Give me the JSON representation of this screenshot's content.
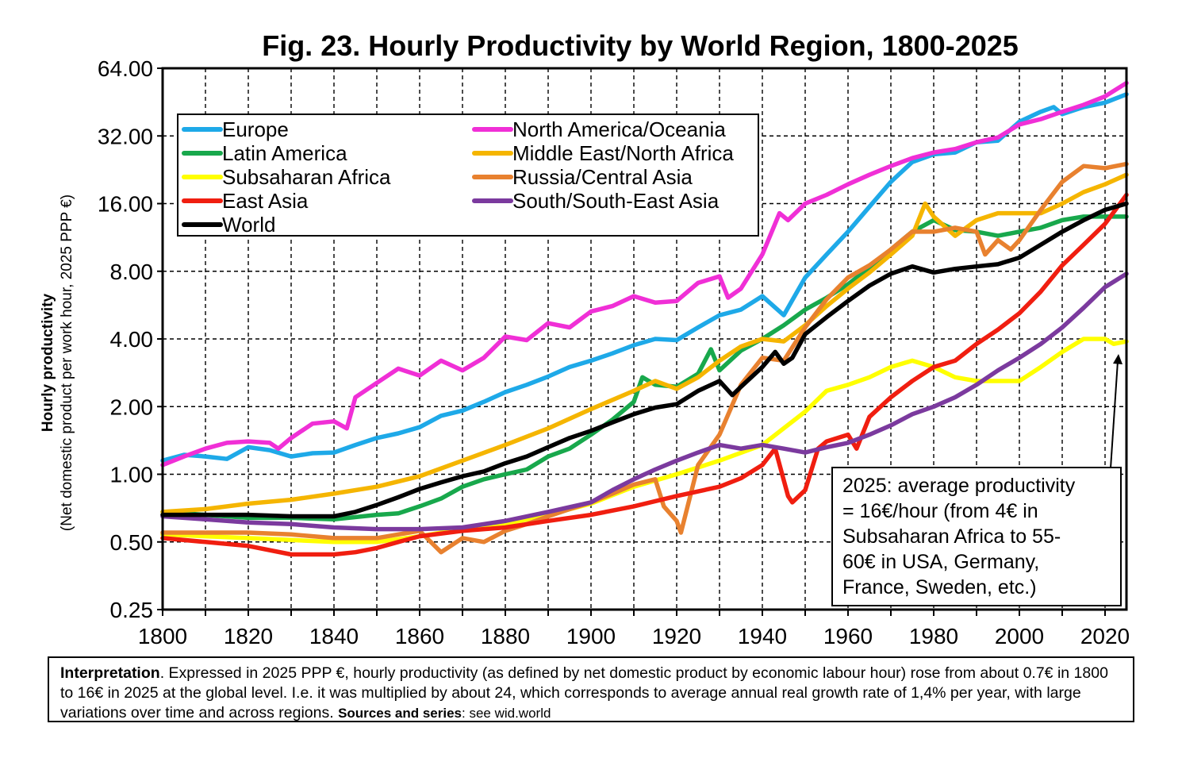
{
  "title": "Fig. 23. Hourly Productivity by World Region, 1800-2025",
  "chart_data": {
    "type": "line",
    "title": "Fig. 23. Hourly Productivity by World Region, 1800-2025",
    "xlabel": "",
    "ylabel": "Hourly productivity",
    "ylabel_sub": "(Net domestic product per work hour, 2025 PPP €)",
    "y_scale": "log2",
    "xlim": [
      1800,
      2025
    ],
    "ylim": [
      0.25,
      64
    ],
    "grid": true,
    "legend_position": "top-left",
    "x_ticks": [
      1800,
      1820,
      1840,
      1860,
      1880,
      1900,
      1920,
      1940,
      1960,
      1980,
      2000,
      2020
    ],
    "x_tick_labels": [
      "1800",
      "1820",
      "1840",
      "1860",
      "1880",
      "1900",
      "1920",
      "1940",
      "1960",
      "1980",
      "2000",
      "2020"
    ],
    "y_ticks": [
      0.25,
      0.5,
      1,
      2,
      4,
      8,
      16,
      32,
      64
    ],
    "y_tick_labels": [
      "0.25",
      "0.50",
      "1.00",
      "2.00",
      "4.00",
      "8.00",
      "16.00",
      "32.00",
      "64.00"
    ],
    "series": [
      {
        "name": "Europe",
        "color": "#1ea9e8",
        "x": [
          1800,
          1805,
          1810,
          1815,
          1820,
          1825,
          1830,
          1835,
          1840,
          1845,
          1850,
          1855,
          1860,
          1865,
          1870,
          1875,
          1880,
          1885,
          1890,
          1895,
          1900,
          1905,
          1910,
          1915,
          1920,
          1925,
          1930,
          1935,
          1940,
          1945,
          1950,
          1955,
          1960,
          1965,
          1970,
          1975,
          1980,
          1985,
          1990,
          1995,
          2000,
          2005,
          2008,
          2010,
          2015,
          2020,
          2025
        ],
        "y": [
          1.15,
          1.22,
          1.2,
          1.17,
          1.32,
          1.28,
          1.2,
          1.24,
          1.25,
          1.35,
          1.45,
          1.52,
          1.62,
          1.82,
          1.92,
          2.1,
          2.32,
          2.5,
          2.72,
          3.0,
          3.2,
          3.45,
          3.75,
          4.0,
          3.95,
          4.5,
          5.1,
          5.4,
          6.2,
          5.1,
          7.5,
          9.5,
          12.0,
          15.5,
          20.0,
          24.5,
          26.5,
          27.0,
          30.0,
          30.5,
          37.0,
          41.0,
          43.0,
          40.0,
          43.0,
          45.0,
          49.0
        ]
      },
      {
        "name": "North America/Oceania",
        "color": "#f02fd6",
        "x": [
          1800,
          1805,
          1810,
          1815,
          1820,
          1825,
          1827,
          1830,
          1835,
          1840,
          1843,
          1845,
          1850,
          1855,
          1860,
          1865,
          1870,
          1875,
          1880,
          1885,
          1890,
          1895,
          1900,
          1905,
          1910,
          1915,
          1920,
          1925,
          1930,
          1932,
          1935,
          1940,
          1944,
          1946,
          1950,
          1955,
          1960,
          1965,
          1970,
          1975,
          1980,
          1985,
          1990,
          1995,
          2000,
          2005,
          2010,
          2015,
          2020,
          2025
        ],
        "y": [
          1.1,
          1.2,
          1.3,
          1.38,
          1.4,
          1.38,
          1.3,
          1.45,
          1.68,
          1.72,
          1.6,
          2.2,
          2.55,
          2.95,
          2.75,
          3.2,
          2.9,
          3.3,
          4.1,
          3.95,
          4.7,
          4.5,
          5.3,
          5.6,
          6.2,
          5.8,
          5.9,
          7.1,
          7.6,
          6.1,
          6.7,
          9.5,
          14.5,
          13.5,
          16.0,
          17.5,
          19.5,
          21.5,
          23.5,
          25.5,
          27.0,
          28.0,
          30.0,
          31.5,
          36.0,
          38.0,
          41.0,
          44.0,
          48.0,
          55.0
        ]
      },
      {
        "name": "Latin America",
        "color": "#18a84c",
        "x": [
          1800,
          1810,
          1820,
          1830,
          1840,
          1850,
          1855,
          1860,
          1865,
          1870,
          1875,
          1880,
          1885,
          1890,
          1895,
          1900,
          1905,
          1910,
          1912,
          1915,
          1920,
          1925,
          1928,
          1930,
          1935,
          1940,
          1945,
          1950,
          1955,
          1960,
          1965,
          1970,
          1975,
          1980,
          1985,
          1990,
          1995,
          2000,
          2005,
          2010,
          2015,
          2020,
          2025
        ],
        "y": [
          0.68,
          0.66,
          0.64,
          0.64,
          0.63,
          0.66,
          0.67,
          0.72,
          0.78,
          0.88,
          0.95,
          1.0,
          1.05,
          1.2,
          1.3,
          1.5,
          1.75,
          2.1,
          2.7,
          2.5,
          2.45,
          2.8,
          3.6,
          2.9,
          3.55,
          4.0,
          4.6,
          5.4,
          6.1,
          7.0,
          8.3,
          10.0,
          12.0,
          13.5,
          12.2,
          12.0,
          11.5,
          12.0,
          12.5,
          13.5,
          14.0,
          14.0,
          14.0
        ]
      },
      {
        "name": "Middle East/North Africa",
        "color": "#f5b500",
        "x": [
          1800,
          1810,
          1820,
          1830,
          1840,
          1850,
          1860,
          1870,
          1880,
          1890,
          1900,
          1910,
          1915,
          1920,
          1925,
          1930,
          1935,
          1940,
          1945,
          1950,
          1955,
          1960,
          1965,
          1970,
          1975,
          1978,
          1980,
          1985,
          1990,
          1995,
          2000,
          2005,
          2010,
          2015,
          2020,
          2025
        ],
        "y": [
          0.68,
          0.7,
          0.74,
          0.77,
          0.82,
          0.88,
          0.98,
          1.15,
          1.35,
          1.6,
          1.95,
          2.35,
          2.6,
          2.4,
          2.7,
          3.2,
          3.7,
          4.0,
          3.9,
          4.6,
          5.6,
          6.7,
          7.9,
          9.5,
          11.5,
          16.0,
          14.0,
          11.5,
          13.5,
          14.5,
          14.5,
          14.5,
          16.0,
          18.0,
          19.5,
          21.5
        ]
      },
      {
        "name": "Subsaharan Africa",
        "color": "#ffff00",
        "x": [
          1800,
          1810,
          1820,
          1830,
          1840,
          1850,
          1860,
          1870,
          1880,
          1890,
          1900,
          1910,
          1920,
          1930,
          1940,
          1950,
          1955,
          1960,
          1965,
          1970,
          1975,
          1980,
          1985,
          1990,
          1995,
          2000,
          2005,
          2010,
          2015,
          2020,
          2022,
          2025
        ],
        "y": [
          0.54,
          0.53,
          0.52,
          0.51,
          0.5,
          0.5,
          0.53,
          0.57,
          0.6,
          0.66,
          0.74,
          0.88,
          1.0,
          1.15,
          1.35,
          1.9,
          2.35,
          2.5,
          2.7,
          3.0,
          3.2,
          3.0,
          2.7,
          2.6,
          2.6,
          2.6,
          3.0,
          3.5,
          4.0,
          4.0,
          3.8,
          3.9
        ]
      },
      {
        "name": "Russia/Central Asia",
        "color": "#e8812f",
        "x": [
          1800,
          1810,
          1820,
          1830,
          1840,
          1850,
          1855,
          1860,
          1865,
          1870,
          1875,
          1880,
          1885,
          1890,
          1895,
          1900,
          1905,
          1910,
          1915,
          1917,
          1920,
          1921,
          1925,
          1930,
          1935,
          1940,
          1945,
          1950,
          1955,
          1960,
          1965,
          1970,
          1975,
          1980,
          1985,
          1990,
          1992,
          1995,
          1998,
          2000,
          2005,
          2010,
          2015,
          2020,
          2025
        ],
        "y": [
          0.55,
          0.55,
          0.55,
          0.54,
          0.52,
          0.52,
          0.54,
          0.56,
          0.45,
          0.52,
          0.5,
          0.56,
          0.6,
          0.65,
          0.7,
          0.75,
          0.82,
          0.9,
          0.95,
          0.72,
          0.62,
          0.55,
          1.1,
          1.5,
          2.5,
          3.3,
          3.2,
          4.5,
          6.0,
          7.5,
          8.5,
          10.0,
          12.0,
          12.0,
          12.5,
          12.0,
          9.5,
          11.0,
          10.0,
          11.0,
          15.0,
          20.0,
          23.5,
          23.0,
          24.0
        ]
      },
      {
        "name": "East Asia",
        "color": "#f01e10",
        "x": [
          1800,
          1810,
          1820,
          1830,
          1840,
          1845,
          1850,
          1855,
          1860,
          1870,
          1880,
          1890,
          1900,
          1910,
          1920,
          1930,
          1935,
          1940,
          1943,
          1946,
          1947,
          1950,
          1953,
          1955,
          1960,
          1962,
          1965,
          1970,
          1975,
          1980,
          1985,
          1990,
          1995,
          2000,
          2005,
          2010,
          2015,
          2020,
          2025
        ],
        "y": [
          0.52,
          0.5,
          0.48,
          0.44,
          0.44,
          0.45,
          0.47,
          0.5,
          0.53,
          0.56,
          0.58,
          0.62,
          0.66,
          0.72,
          0.8,
          0.88,
          0.96,
          1.1,
          1.3,
          0.8,
          0.75,
          0.85,
          1.3,
          1.4,
          1.5,
          1.3,
          1.8,
          2.2,
          2.6,
          3.0,
          3.2,
          3.8,
          4.4,
          5.2,
          6.5,
          8.5,
          10.5,
          13.0,
          17.5
        ]
      },
      {
        "name": "South/South-East Asia",
        "color": "#7b3a9e",
        "x": [
          1800,
          1810,
          1820,
          1830,
          1840,
          1850,
          1860,
          1870,
          1880,
          1890,
          1900,
          1905,
          1910,
          1915,
          1920,
          1925,
          1930,
          1935,
          1940,
          1945,
          1950,
          1955,
          1960,
          1965,
          1970,
          1975,
          1980,
          1985,
          1990,
          1995,
          2000,
          2005,
          2010,
          2015,
          2020,
          2025
        ],
        "y": [
          0.65,
          0.63,
          0.61,
          0.6,
          0.58,
          0.57,
          0.57,
          0.58,
          0.62,
          0.68,
          0.75,
          0.85,
          0.95,
          1.05,
          1.15,
          1.25,
          1.35,
          1.3,
          1.35,
          1.3,
          1.25,
          1.32,
          1.38,
          1.5,
          1.65,
          1.85,
          2.0,
          2.2,
          2.5,
          2.9,
          3.3,
          3.8,
          4.5,
          5.5,
          6.8,
          7.8
        ]
      },
      {
        "name": "World",
        "color": "#000000",
        "x": [
          1800,
          1810,
          1820,
          1830,
          1840,
          1845,
          1850,
          1855,
          1860,
          1865,
          1870,
          1875,
          1880,
          1885,
          1890,
          1895,
          1900,
          1905,
          1910,
          1915,
          1920,
          1925,
          1930,
          1933,
          1935,
          1940,
          1943,
          1945,
          1947,
          1950,
          1955,
          1960,
          1965,
          1970,
          1975,
          1980,
          1985,
          1990,
          1995,
          2000,
          2005,
          2010,
          2015,
          2020,
          2025
        ],
        "y": [
          0.66,
          0.66,
          0.66,
          0.65,
          0.65,
          0.68,
          0.73,
          0.79,
          0.86,
          0.92,
          0.98,
          1.03,
          1.12,
          1.2,
          1.32,
          1.45,
          1.56,
          1.7,
          1.85,
          1.98,
          2.05,
          2.35,
          2.6,
          2.25,
          2.45,
          3.0,
          3.5,
          3.1,
          3.3,
          4.2,
          5.0,
          5.9,
          6.9,
          7.8,
          8.4,
          7.9,
          8.2,
          8.4,
          8.6,
          9.2,
          10.5,
          12.0,
          13.5,
          15.0,
          16.0
        ]
      }
    ]
  },
  "legend": {
    "col1": [
      "Europe",
      "Latin America",
      "Subsaharan Africa",
      "East Asia",
      "World"
    ],
    "col2": [
      "North America/Oceania",
      "Middle East/North Africa",
      "Russia/Central Asia",
      "South/South-East Asia"
    ]
  },
  "annotation": {
    "lines": [
      "2025: average productivity",
      "= 16€/hour (from 4€ in",
      "Subsaharan Africa to 55-",
      "60€ in USA, Germany,",
      "France, Sweden, etc.)"
    ]
  },
  "interpretation": {
    "label": "Interpretation",
    "text": ". Expressed in 2025 PPP €, hourly productivity (as defined by net domestic product by economic labour hour) rose from about 0.7€ in 1800 to 16€ in 2025 at the global level. I.e. it was multiplied by about 24, which corresponds to average annual real growth rate of 1,4% per year, with large variations over time and across regions. ",
    "sources_label": "Sources and series",
    "sources_text": ": see wid.world"
  }
}
